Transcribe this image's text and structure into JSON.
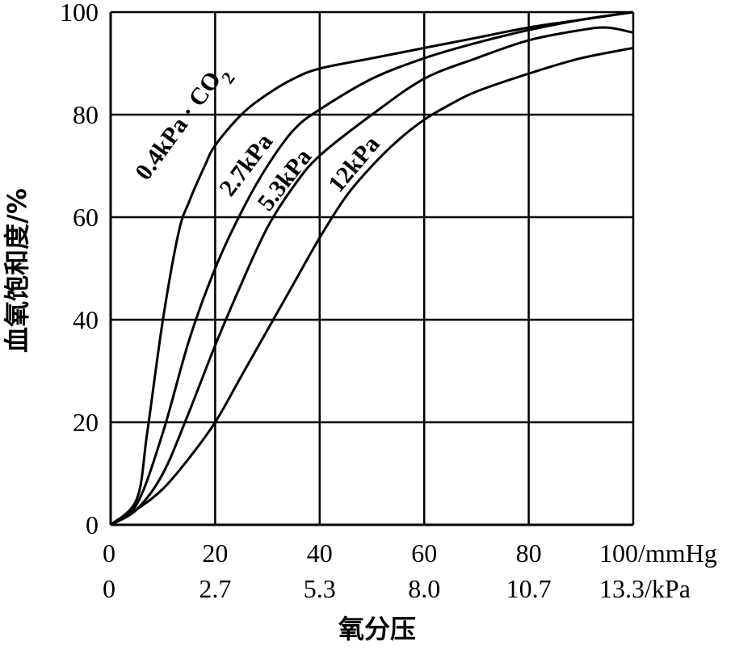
{
  "chart_data": {
    "type": "line",
    "xlabel": "氧分压",
    "ylabel": "血氧饱和度/%",
    "xlim": [
      0,
      100
    ],
    "ylim": [
      0,
      100
    ],
    "grid": true,
    "x_ticks_mmHg": [
      "0",
      "20",
      "40",
      "60",
      "80",
      "100/mmHg"
    ],
    "x_ticks_kPa": [
      "0",
      "2.7",
      "5.3",
      "8.0",
      "10.7",
      "13.3/kPa"
    ],
    "y_ticks": [
      "0",
      "20",
      "40",
      "60",
      "80",
      "100"
    ],
    "series": [
      {
        "name": "0.4kPa · CO2",
        "points": [
          [
            0,
            0
          ],
          [
            5,
            5
          ],
          [
            7,
            18
          ],
          [
            10,
            40
          ],
          [
            13,
            57
          ],
          [
            15,
            63
          ],
          [
            18,
            70
          ],
          [
            20,
            74
          ],
          [
            25,
            80
          ],
          [
            30,
            84
          ],
          [
            35,
            87
          ],
          [
            40,
            89
          ],
          [
            50,
            91
          ],
          [
            60,
            93
          ],
          [
            70,
            95
          ],
          [
            80,
            97
          ],
          [
            90,
            98.5
          ],
          [
            100,
            100
          ]
        ]
      },
      {
        "name": "2.7kPa",
        "points": [
          [
            0,
            0
          ],
          [
            5,
            4
          ],
          [
            10,
            18
          ],
          [
            15,
            36
          ],
          [
            20,
            50
          ],
          [
            25,
            61
          ],
          [
            30,
            70
          ],
          [
            35,
            77
          ],
          [
            40,
            81
          ],
          [
            50,
            87
          ],
          [
            60,
            91
          ],
          [
            70,
            94
          ],
          [
            80,
            96.5
          ],
          [
            90,
            98.5
          ],
          [
            100,
            100
          ]
        ]
      },
      {
        "name": "5.3kPa",
        "points": [
          [
            0,
            0
          ],
          [
            5,
            3
          ],
          [
            10,
            10
          ],
          [
            15,
            22
          ],
          [
            20,
            35
          ],
          [
            25,
            47
          ],
          [
            30,
            58
          ],
          [
            35,
            66
          ],
          [
            40,
            72
          ],
          [
            50,
            80
          ],
          [
            60,
            87
          ],
          [
            70,
            91
          ],
          [
            80,
            94.5
          ],
          [
            90,
            96.5
          ],
          [
            95,
            97
          ],
          [
            100,
            96
          ]
        ]
      },
      {
        "name": "12kPa",
        "points": [
          [
            0,
            0
          ],
          [
            5,
            3
          ],
          [
            10,
            7
          ],
          [
            15,
            13
          ],
          [
            20,
            20
          ],
          [
            25,
            29
          ],
          [
            30,
            38
          ],
          [
            35,
            47
          ],
          [
            40,
            56
          ],
          [
            45,
            64
          ],
          [
            50,
            70
          ],
          [
            55,
            75
          ],
          [
            60,
            79
          ],
          [
            65,
            82
          ],
          [
            70,
            84.5
          ],
          [
            80,
            88
          ],
          [
            90,
            91
          ],
          [
            100,
            93
          ]
        ]
      }
    ]
  },
  "labels": {
    "curve_0": "0.4kPa · CO",
    "curve_0_sub": "2",
    "curve_1": "2.7kPa",
    "curve_2": "5.3kPa",
    "curve_3": "12kPa"
  }
}
